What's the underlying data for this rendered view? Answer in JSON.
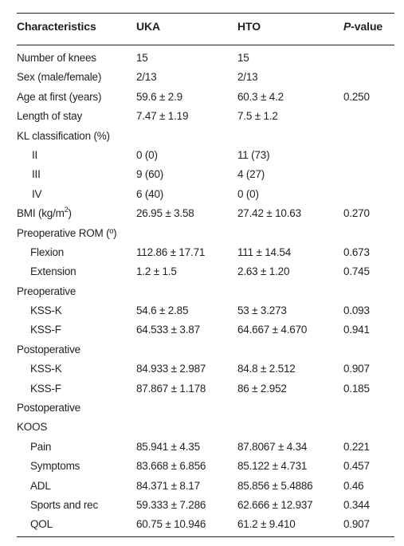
{
  "header": {
    "characteristics": "Characteristics",
    "uka": "UKA",
    "hto": "HTO",
    "p_italic": "P",
    "p_rest": "-value"
  },
  "rows": [
    {
      "label": "Number of knees",
      "uka": "15",
      "hto": "15",
      "p": ""
    },
    {
      "label": "Sex (male/female)",
      "uka": "2/13",
      "hto": "2/13",
      "p": ""
    },
    {
      "label": "Age at first (years)",
      "uka": "59.6 ± 2.9",
      "hto": "60.3 ± 4.2",
      "p": "0.250"
    },
    {
      "label": "Length of stay",
      "uka": "7.47 ± 1.19",
      "hto": "7.5 ± 1.2",
      "p": ""
    },
    {
      "label": "KL classification (%)",
      "uka": "",
      "hto": "",
      "p": ""
    },
    {
      "label": "II",
      "uka": "0 (0)",
      "hto": "11 (73)",
      "p": ""
    },
    {
      "label": "III",
      "uka": "9 (60)",
      "hto": "4 (27)",
      "p": ""
    },
    {
      "label": "IV",
      "uka": "6 (40)",
      "hto": "0 (0)",
      "p": ""
    },
    {
      "label": "BMI (kg/m",
      "label_sup": "2",
      "label_end": ")",
      "uka": "26.95 ± 3.58",
      "hto": "27.42 ± 10.63",
      "p": "0.270"
    },
    {
      "label": "Preoperative ROM (º)",
      "uka": "",
      "hto": "",
      "p": ""
    },
    {
      "label": "Flexion",
      "uka": "112.86 ± 17.71",
      "hto": "111 ± 14.54",
      "p": "0.673"
    },
    {
      "label": "Extension",
      "uka": "1.2 ± 1.5",
      "hto": "2.63 ± 1.20",
      "p": "0.745"
    },
    {
      "label": "Preoperative",
      "uka": "",
      "hto": "",
      "p": ""
    },
    {
      "label": "KSS-K",
      "uka": "54.6 ± 2.85",
      "hto": "53 ± 3.273",
      "p": "0.093"
    },
    {
      "label": "KSS-F",
      "uka": "64.533 ± 3.87",
      "hto": "64.667 ± 4.670",
      "p": "0.941"
    },
    {
      "label": "Postoperative",
      "uka": "",
      "hto": "",
      "p": ""
    },
    {
      "label": "KSS-K",
      "uka": "84.933 ± 2.987",
      "hto": "84.8 ± 2.512",
      "p": "0.907"
    },
    {
      "label": "KSS-F",
      "uka": "87.867 ± 1.178",
      "hto": "86 ± 2.952",
      "p": "0.185"
    },
    {
      "label": "Postoperative",
      "uka": "",
      "hto": "",
      "p": ""
    },
    {
      "label": "KOOS",
      "uka": "",
      "hto": "",
      "p": ""
    },
    {
      "label": "Pain",
      "uka": "85.941 ± 4.35",
      "hto": "87.8067 ± 4.34",
      "p": "0.221"
    },
    {
      "label": "Symptoms",
      "uka": "83.668 ± 6.856",
      "hto": "85.122 ± 4.731",
      "p": "0.457"
    },
    {
      "label": "ADL",
      "uka": "84.371 ± 8.17",
      "hto": "85.856 ± 5.4886",
      "p": "0.46"
    },
    {
      "label": "Sports and rec",
      "uka": "59.333 ± 7.286",
      "hto": "62.666 ± 12.937",
      "p": "0.344"
    },
    {
      "label": "QOL",
      "uka": "60.75 ± 10.946",
      "hto": "61.2 ± 9.410",
      "p": "0.907"
    }
  ]
}
